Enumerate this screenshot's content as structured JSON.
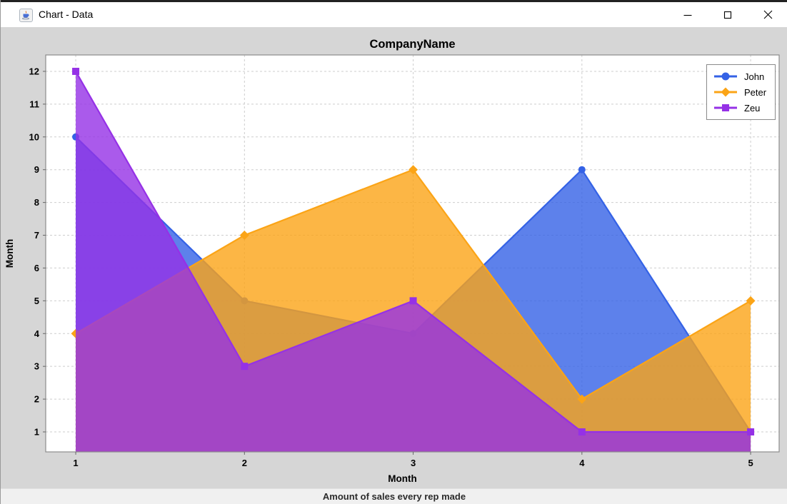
{
  "window": {
    "title": "Chart - Data",
    "icon": "java-coffee-cup",
    "controls": {
      "minimize": "minimize",
      "maximize": "maximize",
      "close": "close"
    }
  },
  "colors": {
    "titlebar_bg": "#ffffff",
    "chart_outer_bg": "#d6d6d6",
    "plot_bg": "#ffffff",
    "gridline": "#cdcdcd",
    "plot_border": "#8c8c8c",
    "caption_bg": "#f0f0f0",
    "john_blue": "#3462e6",
    "peter_orange": "#fba416",
    "zeu_purple": "#9531e6"
  },
  "chart_data": {
    "type": "area",
    "title": "CompanyName",
    "xlabel": "Month",
    "ylabel": "Month",
    "caption": "Amount of sales every rep made",
    "x": [
      1,
      2,
      3,
      4,
      5
    ],
    "series": [
      {
        "name": "John",
        "values": [
          10,
          5,
          4,
          9,
          1
        ],
        "color": "#3462e6",
        "marker": "circle"
      },
      {
        "name": "Peter",
        "values": [
          4,
          7,
          9,
          2,
          5
        ],
        "color": "#fba416",
        "marker": "diamond"
      },
      {
        "name": "Zeu",
        "values": [
          12,
          3,
          5,
          1,
          1
        ],
        "color": "#9531e6",
        "marker": "square"
      }
    ],
    "xticks": [
      1,
      2,
      3,
      4,
      5
    ],
    "yticks": [
      1,
      2,
      3,
      4,
      5,
      6,
      7,
      8,
      9,
      10,
      11,
      12
    ],
    "xlim": [
      0.822,
      5.169
    ],
    "ylim": [
      0.39,
      12.5
    ],
    "grid": true,
    "fill_opacity": 0.8,
    "legend_position": "top-right"
  }
}
